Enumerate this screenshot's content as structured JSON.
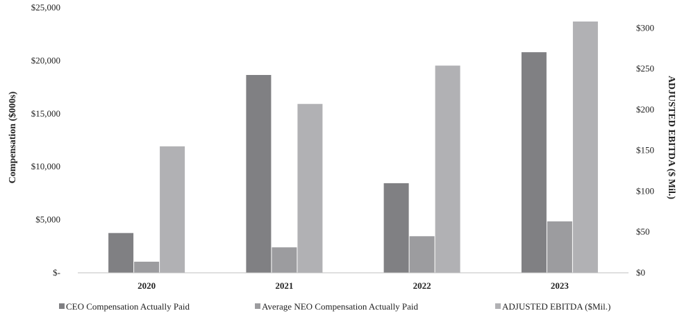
{
  "chart_data": {
    "type": "bar",
    "categories": [
      "2020",
      "2021",
      "2022",
      "2023"
    ],
    "series": [
      {
        "name": "CEO Compensation Actually Paid",
        "axis": "left",
        "color": "#808083",
        "values": [
          3750,
          18650,
          8450,
          20800
        ]
      },
      {
        "name": "Average NEO Compensation Actually Paid",
        "axis": "left",
        "color": "#9c9c9f",
        "values": [
          1050,
          2400,
          3450,
          4850
        ]
      },
      {
        "name": "ADJUSTED EBITDA ($Mil.)",
        "axis": "right",
        "color": "#b1b1b4",
        "values": [
          155,
          207,
          254,
          308
        ]
      }
    ],
    "ylabel": "Compensation ($000s)",
    "y2label": "ADJUSTED EBITDA ($ Mil.)",
    "ylim": [
      0,
      25000
    ],
    "y2lim": [
      0,
      325
    ],
    "y_ticks": [
      "$-",
      "$5,000",
      "$10,000",
      "$15,000",
      "$20,000",
      "$25,000"
    ],
    "y_tick_values": [
      0,
      5000,
      10000,
      15000,
      20000,
      25000
    ],
    "y2_ticks": [
      "$0",
      "$50",
      "$100",
      "$150",
      "$200",
      "$250",
      "$300"
    ],
    "y2_tick_values": [
      0,
      50,
      100,
      150,
      200,
      250,
      300
    ],
    "grid": false,
    "legend_position": "bottom"
  }
}
